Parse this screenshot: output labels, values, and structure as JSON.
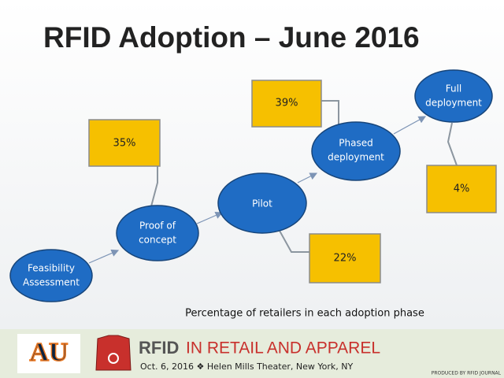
{
  "title": "RFID Adoption – June 2016",
  "nodes": [
    {
      "lines": [
        "Feasibility",
        "Assessment"
      ]
    },
    {
      "lines": [
        "Proof of",
        "concept"
      ]
    },
    {
      "lines": [
        "Pilot"
      ]
    },
    {
      "lines": [
        "Phased",
        "deployment"
      ]
    },
    {
      "lines": [
        "Full",
        "deployment"
      ]
    }
  ],
  "percentages": [
    {
      "node": "Proof of concept",
      "label": "35%"
    },
    {
      "node": "Phased deployment",
      "label": "39%"
    },
    {
      "node": "Pilot",
      "label": "22%"
    },
    {
      "node": "Full deployment",
      "label": "4%"
    }
  ],
  "caption": "Percentage of retailers in each adoption phase",
  "footer": {
    "logo": "AU",
    "brand": "RFID",
    "event": "IN RETAIL AND APPAREL",
    "details": "Oct. 6, 2016 ❖ Helen Mills Theater, New York, NY",
    "producer": "PRODUCED BY RFID JOURNAL"
  }
}
